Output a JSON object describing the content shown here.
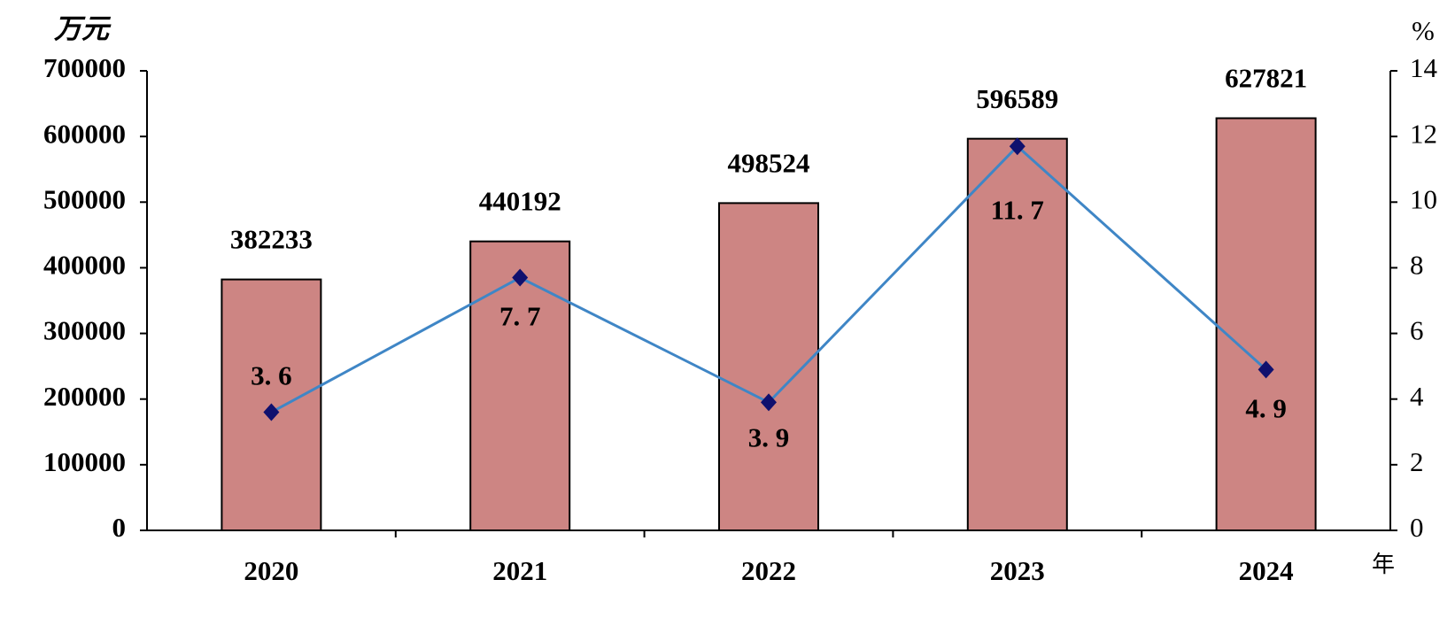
{
  "chart_data": {
    "type": "bar-line",
    "y_label": "万元",
    "y2_label": "%",
    "x_label": "年",
    "categories": [
      "2020",
      "2021",
      "2022",
      "2023",
      "2024"
    ],
    "series": [
      {
        "type": "bar",
        "color": "#cd8583",
        "values": [
          382233,
          440192,
          498524,
          596589,
          627821
        ]
      },
      {
        "type": "line",
        "axis": "y2",
        "color": "#3f86c6",
        "marker_color": "#10106e",
        "values": [
          3.6,
          7.7,
          3.9,
          11.7,
          4.9
        ],
        "value_labels": [
          "3. 6",
          "7. 7",
          "3. 9",
          "11. 7",
          "4. 9"
        ]
      }
    ],
    "ylim": [
      0,
      700000
    ],
    "yticks": [
      0,
      100000,
      200000,
      300000,
      400000,
      500000,
      600000,
      700000
    ],
    "y2lim": [
      0,
      14
    ],
    "y2ticks": [
      0,
      2,
      4,
      6,
      8,
      10,
      12,
      14
    ],
    "grid": false
  }
}
